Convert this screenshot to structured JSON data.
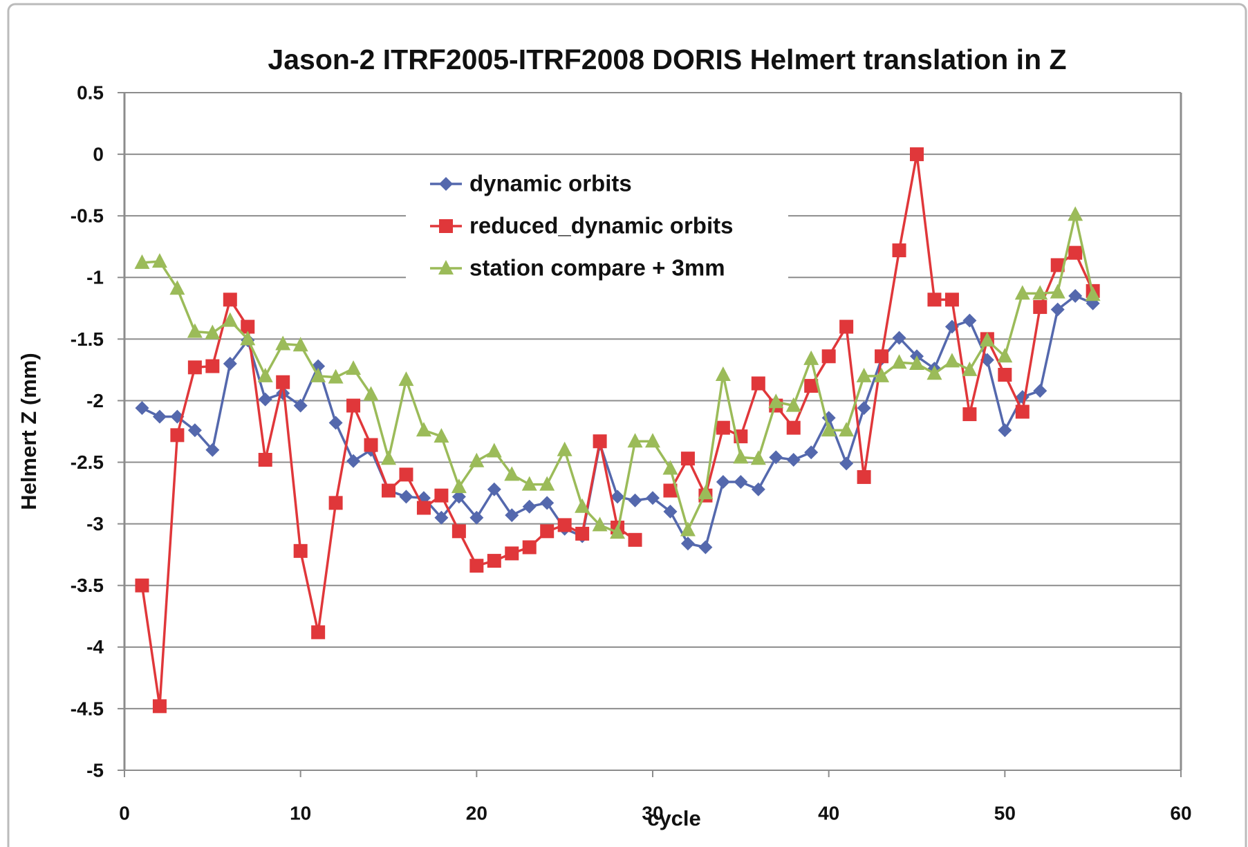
{
  "chart_data": {
    "type": "line",
    "title": "Jason-2 ITRF2005-ITRF2008 DORIS Helmert translation in Z",
    "x_label": "cycle",
    "y_label": "Helmert Z (mm)",
    "x": [
      1,
      2,
      3,
      4,
      5,
      6,
      7,
      8,
      9,
      10,
      11,
      12,
      13,
      14,
      15,
      16,
      17,
      18,
      19,
      20,
      21,
      22,
      23,
      24,
      25,
      26,
      27,
      28,
      29,
      30,
      31,
      32,
      33,
      34,
      35,
      36,
      37,
      38,
      39,
      40,
      41,
      42,
      43,
      44,
      45,
      46,
      47,
      48,
      49,
      50,
      51,
      52,
      53,
      54,
      55
    ],
    "series": [
      {
        "name": "dynamic orbits",
        "color": "#5468ad",
        "marker": "diamond",
        "values": [
          -2.06,
          -2.13,
          -2.13,
          -2.24,
          -2.4,
          -1.7,
          -1.51,
          -1.99,
          -1.94,
          -2.04,
          -1.72,
          -2.18,
          -2.49,
          -2.4,
          -2.73,
          -2.78,
          -2.79,
          -2.95,
          -2.78,
          -2.95,
          -2.72,
          -2.93,
          -2.86,
          -2.83,
          -3.04,
          -3.1,
          -2.35,
          -2.78,
          -2.81,
          -2.79,
          -2.9,
          -3.16,
          -3.19,
          -2.66,
          -2.66,
          -2.72,
          -2.46,
          -2.48,
          -2.42,
          -2.14,
          -2.51,
          -2.06,
          -1.66,
          -1.49,
          -1.64,
          -1.74,
          -1.4,
          -1.35,
          -1.67,
          -2.24,
          -1.97,
          -1.92,
          -1.26,
          -1.15,
          -1.21
        ]
      },
      {
        "name": "reduced_dynamic orbits",
        "color": "#e0373a",
        "marker": "square",
        "values": [
          -3.5,
          -4.48,
          -2.28,
          -1.73,
          -1.72,
          -1.18,
          -1.4,
          -2.48,
          -1.85,
          -3.22,
          -3.88,
          -2.83,
          -2.04,
          -2.36,
          -2.73,
          -2.6,
          -2.87,
          -2.77,
          -3.06,
          -3.34,
          -3.3,
          -3.24,
          -3.19,
          -3.06,
          -3.01,
          -3.08,
          -2.33,
          -3.03,
          -3.13,
          null,
          -2.73,
          -2.47,
          -2.77,
          -2.22,
          -2.29,
          -1.86,
          -2.04,
          -2.22,
          -1.88,
          -1.64,
          -1.4,
          -2.62,
          -1.64,
          -0.78,
          0.0,
          -1.18,
          -1.18,
          -2.11,
          -1.5,
          -1.79,
          -2.09,
          -1.24,
          -0.9,
          -0.8,
          -1.11
        ]
      },
      {
        "name": "station compare + 3mm",
        "color": "#9bbb59",
        "marker": "triangle",
        "values": [
          -0.88,
          -0.87,
          -1.09,
          -1.44,
          -1.45,
          -1.35,
          -1.5,
          -1.8,
          -1.54,
          -1.55,
          -1.8,
          -1.81,
          -1.74,
          -1.95,
          -2.47,
          -1.83,
          -2.24,
          -2.29,
          -2.7,
          -2.49,
          -2.41,
          -2.6,
          -2.68,
          -2.68,
          -2.4,
          -2.86,
          -3.01,
          -3.07,
          -2.33,
          -2.33,
          -2.55,
          -3.05,
          -2.75,
          -1.79,
          -2.46,
          -2.47,
          -2.01,
          -2.04,
          -1.66,
          -2.24,
          -2.24,
          -1.8,
          -1.8,
          -1.69,
          -1.7,
          -1.78,
          -1.68,
          -1.75,
          -1.51,
          -1.64,
          -1.13,
          -1.13,
          -1.12,
          -0.49,
          -1.14
        ]
      }
    ],
    "xlim": [
      0,
      60
    ],
    "xticks": [
      0,
      10,
      20,
      30,
      40,
      50,
      60
    ],
    "ylim": [
      -5,
      0.5
    ],
    "yticks": [
      0.5,
      0,
      -0.5,
      -1,
      -1.5,
      -2,
      -2.5,
      -3,
      -3.5,
      -4,
      -4.5,
      -5
    ],
    "grid": true,
    "legend": "upper center"
  }
}
